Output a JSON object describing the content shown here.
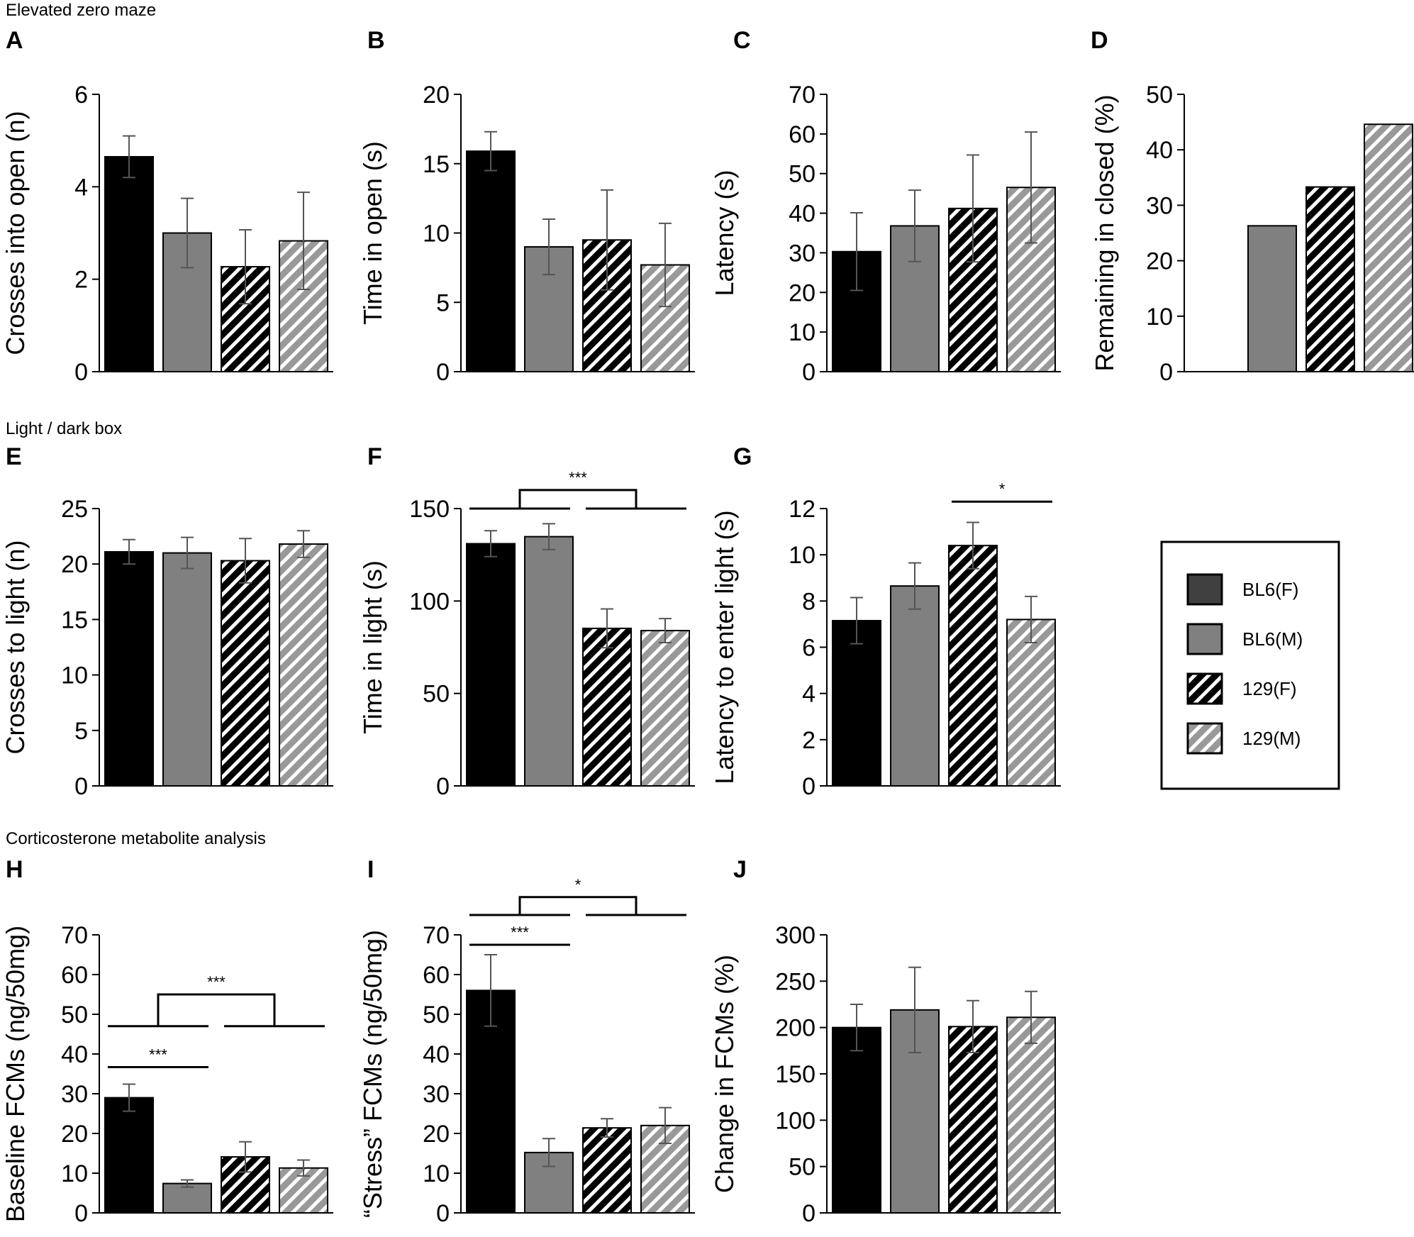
{
  "sections": [
    {
      "title": "Elevated zero maze"
    },
    {
      "title": "Light / dark box"
    },
    {
      "title": "Corticosterone metabolite analysis"
    }
  ],
  "groups": [
    {
      "name": "BL6(F)",
      "fill": "#000000",
      "pattern": "solid"
    },
    {
      "name": "BL6(M)",
      "fill": "#808080",
      "pattern": "solid"
    },
    {
      "name": "129(F)",
      "fill": "#000000",
      "pattern": "hatch-black"
    },
    {
      "name": "129(M)",
      "fill": "#999999",
      "pattern": "hatch-gray"
    }
  ],
  "colors": {
    "black": "#000000",
    "gray": "#808080",
    "hatch_gray": "#999999",
    "errorbar": "#555555",
    "legend_black": "#404040"
  },
  "chart_data": [
    {
      "id": "A",
      "type": "bar",
      "title": "A",
      "ylabel": "Crosses into open (n)",
      "ylim": [
        0,
        6
      ],
      "yticks": [
        0,
        2,
        4,
        6
      ],
      "categories": [
        "BL6(F)",
        "BL6(M)",
        "129(F)",
        "129(M)"
      ],
      "values": [
        4.65,
        3.0,
        2.27,
        2.83
      ],
      "errors": [
        0.45,
        0.75,
        0.8,
        1.05
      ],
      "brackets": []
    },
    {
      "id": "B",
      "type": "bar",
      "title": "B",
      "ylabel": "Time in open (s)",
      "ylim": [
        0,
        20
      ],
      "yticks": [
        0,
        5,
        10,
        15,
        20
      ],
      "categories": [
        "BL6(F)",
        "BL6(M)",
        "129(F)",
        "129(M)"
      ],
      "values": [
        15.9,
        9.0,
        9.5,
        7.7
      ],
      "errors": [
        1.4,
        2.0,
        3.6,
        3.0
      ],
      "brackets": []
    },
    {
      "id": "C",
      "type": "bar",
      "title": "C",
      "ylabel": "Latency (s)",
      "ylim": [
        0,
        70
      ],
      "yticks": [
        0,
        10,
        20,
        30,
        40,
        50,
        60,
        70
      ],
      "categories": [
        "BL6(F)",
        "BL6(M)",
        "129(F)",
        "129(M)"
      ],
      "values": [
        30.3,
        36.8,
        41.2,
        46.5
      ],
      "errors": [
        9.8,
        9.0,
        13.5,
        14.0
      ],
      "brackets": []
    },
    {
      "id": "D",
      "type": "bar",
      "title": "D",
      "ylabel": "Remaining in closed (%)",
      "ylim": [
        0,
        50
      ],
      "yticks": [
        0,
        10,
        20,
        30,
        40,
        50
      ],
      "categories": [
        "BL6(F)",
        "BL6(M)",
        "129(F)",
        "129(M)"
      ],
      "values": [
        null,
        26.3,
        33.3,
        44.6
      ],
      "errors": [
        null,
        null,
        null,
        null
      ],
      "brackets": []
    },
    {
      "id": "E",
      "type": "bar",
      "title": "E",
      "ylabel": "Crosses to light (n)",
      "ylim": [
        0,
        25
      ],
      "yticks": [
        0,
        5,
        10,
        15,
        20,
        25
      ],
      "categories": [
        "BL6(F)",
        "BL6(M)",
        "129(F)",
        "129(M)"
      ],
      "values": [
        21.1,
        21.0,
        20.3,
        21.8
      ],
      "errors": [
        1.1,
        1.4,
        2.0,
        1.2
      ],
      "brackets": []
    },
    {
      "id": "F",
      "type": "bar",
      "title": "F",
      "ylabel": "Time in light (s)",
      "ylim": [
        0,
        150
      ],
      "yticks": [
        0,
        50,
        100,
        150
      ],
      "categories": [
        "BL6(F)",
        "BL6(M)",
        "129(F)",
        "129(M)"
      ],
      "values": [
        131.0,
        134.8,
        85.2,
        84.0
      ],
      "errors": [
        7.0,
        7.0,
        10.5,
        6.5
      ],
      "brackets": [
        {
          "type": "group",
          "from": [
            0,
            1
          ],
          "to": [
            2,
            3
          ],
          "y": 150,
          "peak": 160,
          "label": "***"
        }
      ]
    },
    {
      "id": "G",
      "type": "bar",
      "title": "G",
      "ylabel": "Latency to enter light (s)",
      "ylim": [
        0,
        12
      ],
      "yticks": [
        0,
        2,
        4,
        6,
        8,
        10,
        12
      ],
      "categories": [
        "BL6(F)",
        "BL6(M)",
        "129(F)",
        "129(M)"
      ],
      "values": [
        7.15,
        8.65,
        10.4,
        7.2
      ],
      "errors": [
        1.0,
        1.0,
        1.0,
        1.0
      ],
      "brackets": [
        {
          "type": "line",
          "from": 2,
          "to": 3,
          "y": 12.3,
          "label": "*"
        }
      ]
    },
    {
      "id": "H",
      "type": "bar",
      "title": "H",
      "ylabel": "Baseline FCMs (ng/50mg)",
      "ylim": [
        0,
        70
      ],
      "yticks": [
        0,
        10,
        20,
        30,
        40,
        50,
        60,
        70
      ],
      "categories": [
        "BL6(F)",
        "BL6(M)",
        "129(F)",
        "129(M)"
      ],
      "values": [
        29.0,
        7.4,
        14.1,
        11.3
      ],
      "errors": [
        3.4,
        0.9,
        3.8,
        2.0
      ],
      "brackets": [
        {
          "type": "line",
          "from": 0,
          "to": 1,
          "y": 36.7,
          "label": "***"
        },
        {
          "type": "group",
          "from": [
            0,
            1
          ],
          "to": [
            2,
            3
          ],
          "y": 47.0,
          "peak": 55.0,
          "label": "***"
        }
      ]
    },
    {
      "id": "I",
      "type": "bar",
      "title": "I",
      "ylabel": "“Stress” FCMs (ng/50mg)",
      "ylim": [
        0,
        70
      ],
      "yticks": [
        0,
        10,
        20,
        30,
        40,
        50,
        60,
        70
      ],
      "categories": [
        "BL6(F)",
        "BL6(M)",
        "129(F)",
        "129(M)"
      ],
      "values": [
        56.0,
        15.2,
        21.4,
        22.0
      ],
      "errors": [
        9.0,
        3.5,
        2.3,
        4.5
      ],
      "brackets": [
        {
          "type": "line",
          "from": 0,
          "to": 1,
          "y": 67.5,
          "label": "***"
        },
        {
          "type": "group",
          "from": [
            0,
            1
          ],
          "to": [
            2,
            3
          ],
          "y": 75.0,
          "peak": 79.5,
          "label": "*"
        }
      ]
    },
    {
      "id": "J",
      "type": "bar",
      "title": "J",
      "ylabel": "Change in FCMs (%)",
      "ylim": [
        0,
        300
      ],
      "yticks": [
        0,
        50,
        100,
        150,
        200,
        250,
        300
      ],
      "categories": [
        "BL6(F)",
        "BL6(M)",
        "129(F)",
        "129(M)"
      ],
      "values": [
        200.0,
        219.0,
        201.0,
        211.0
      ],
      "errors": [
        25.0,
        46.0,
        28.0,
        28.0
      ],
      "brackets": []
    }
  ],
  "legend": {
    "items": [
      "BL6(F)",
      "BL6(M)",
      "129(F)",
      "129(M)"
    ]
  }
}
